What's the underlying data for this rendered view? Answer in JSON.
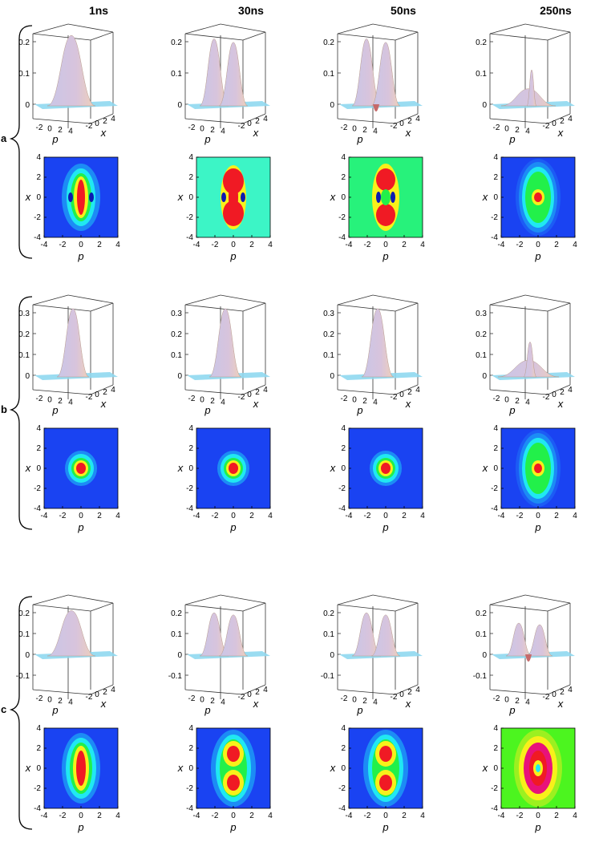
{
  "figure": {
    "columns": [
      "1ns",
      "30ns",
      "50ns",
      "250ns"
    ],
    "rows": [
      {
        "label": "a",
        "surface_z_ticks": [
          "0.2",
          "0.1",
          "0"
        ],
        "panels": [
          {
            "peak": 0.22,
            "shape": "single-ridge",
            "bg": "#1a43f2"
          },
          {
            "peak": 0.22,
            "shape": "double-peak",
            "bg": "#3cf5c6"
          },
          {
            "peak": 0.22,
            "shape": "double-peak-dips",
            "bg": "#27f27b"
          },
          {
            "peak": 0.11,
            "shape": "central-spike",
            "bg": "#1a43f2"
          }
        ]
      },
      {
        "label": "b",
        "surface_z_ticks": [
          "0.3",
          "0.2",
          "0.1",
          "0"
        ],
        "panels": [
          {
            "peak": 0.32,
            "shape": "gaussian",
            "bg": "#1a43f2"
          },
          {
            "peak": 0.32,
            "shape": "gaussian",
            "bg": "#1a43f2"
          },
          {
            "peak": 0.32,
            "shape": "gaussian",
            "bg": "#1a43f2"
          },
          {
            "peak": 0.16,
            "shape": "broad-spike",
            "bg": "#1a43f2"
          }
        ]
      },
      {
        "label": "c",
        "surface_z_ticks": [
          "0.2",
          "0.1",
          "0",
          "-0.1"
        ],
        "panels": [
          {
            "peak": 0.21,
            "shape": "single-ridge",
            "bg": "#1a43f2"
          },
          {
            "peak": 0.21,
            "shape": "double-peak",
            "bg": "#1a43f2"
          },
          {
            "peak": 0.21,
            "shape": "double-peak",
            "bg": "#1a43f2"
          },
          {
            "peak": 0.15,
            "shape": "ring",
            "bg": "#4cf51f"
          }
        ]
      }
    ],
    "axes": {
      "p_label": "p",
      "x_label": "x",
      "surface_p_ticks": [
        "-2",
        "0",
        "2",
        "4"
      ],
      "surface_x_ticks": [
        "-2",
        "0",
        "2",
        "4"
      ],
      "density_ticks": [
        "-4",
        "-2",
        "0",
        "2",
        "4"
      ]
    },
    "colors": {
      "blue": "#1a3cf0",
      "cyan": "#20e8f2",
      "green": "#22f04a",
      "yellow": "#f8f01a",
      "red": "#f01a24",
      "magenta": "#e8127a",
      "surface_top": "#d8c4dc",
      "surface_side": "#f0d0b8",
      "floor": "#8fd8ef"
    }
  }
}
